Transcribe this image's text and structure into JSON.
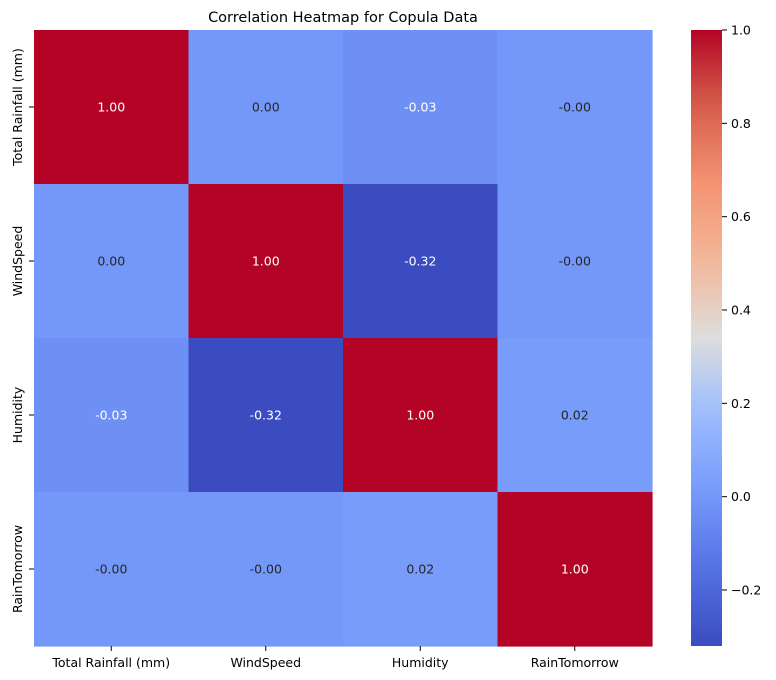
{
  "chart_data": {
    "type": "heatmap",
    "title": "Correlation Heatmap for Copula Data",
    "x_categories": [
      "Total Rainfall (mm)",
      "WindSpeed",
      "Humidity",
      "RainTomorrow"
    ],
    "y_categories": [
      "Total Rainfall (mm)",
      "WindSpeed",
      "Humidity",
      "RainTomorrow"
    ],
    "values": [
      [
        1.0,
        0.0,
        -0.03,
        -0.0
      ],
      [
        0.0,
        1.0,
        -0.32,
        -0.0
      ],
      [
        -0.03,
        -0.32,
        1.0,
        0.02
      ],
      [
        -0.0,
        -0.0,
        0.02,
        1.0
      ]
    ],
    "value_labels": [
      [
        "1.00",
        "0.00",
        "-0.03",
        "-0.00"
      ],
      [
        "0.00",
        "1.00",
        "-0.32",
        "-0.00"
      ],
      [
        "-0.03",
        "-0.32",
        "1.00",
        "0.02"
      ],
      [
        "-0.00",
        "-0.00",
        "0.02",
        "1.00"
      ]
    ],
    "colormap": "coolwarm",
    "vmin": -0.32,
    "vmax": 1.0,
    "colorbar_ticks": [
      -0.2,
      0.0,
      0.2,
      0.4,
      0.6,
      0.8,
      1.0
    ],
    "colorbar_tick_labels": [
      "−0.2",
      "0.0",
      "0.2",
      "0.4",
      "0.6",
      "0.8",
      "1.0"
    ],
    "annotation_colors": {
      "dark": "#262626",
      "light": "#ffffff"
    }
  }
}
